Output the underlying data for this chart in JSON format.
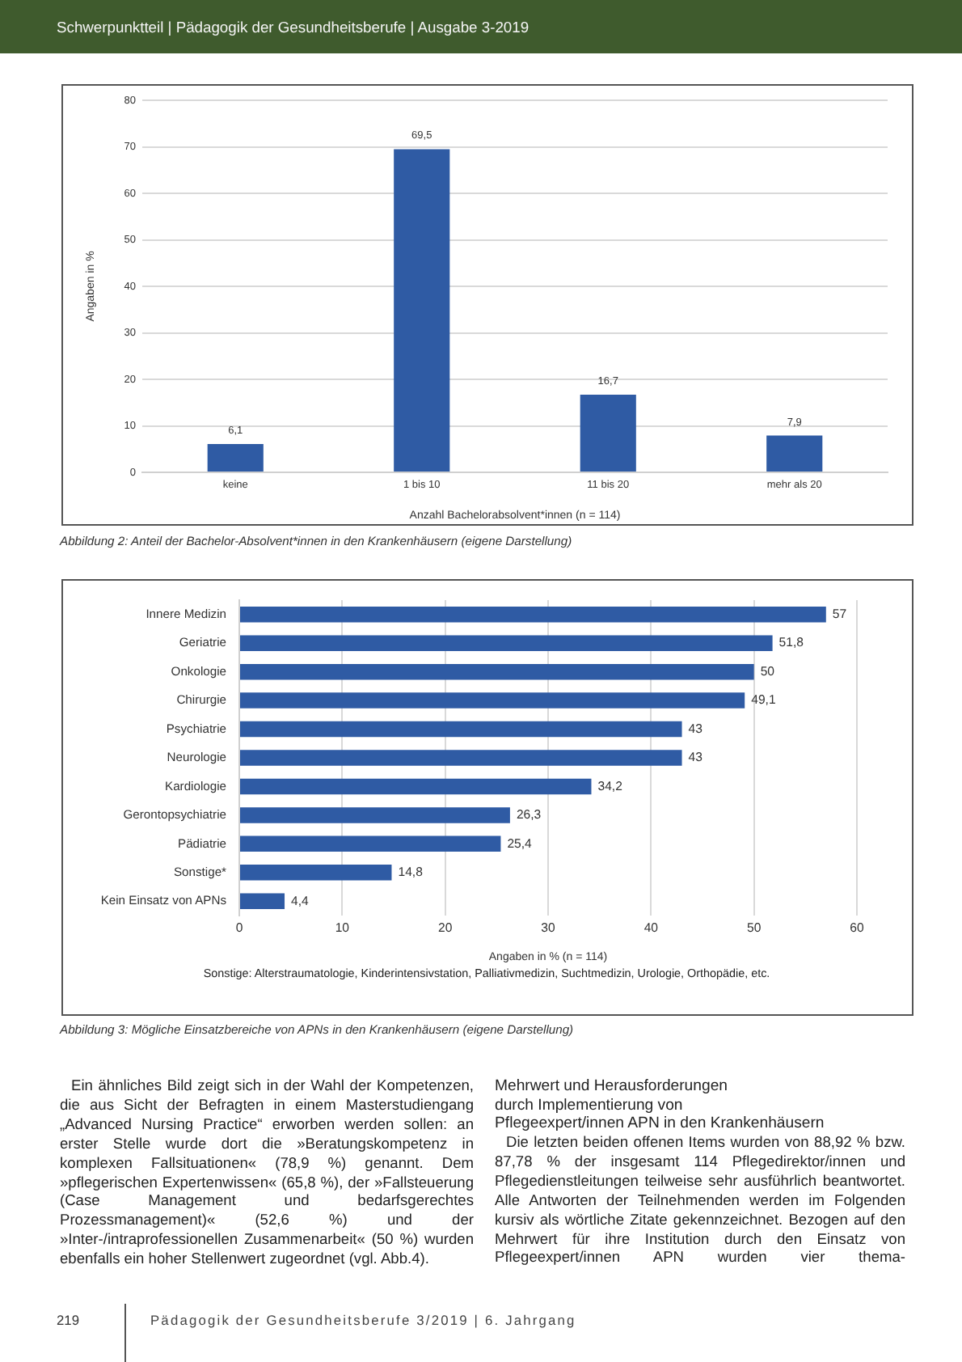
{
  "chart_data": [
    {
      "type": "other",
      "annotations": [
        "Schwerpunktteil | Pädagogik der Gesundheitsberufe | Ausgabe 3-2019"
      ]
    },
    {
      "type": "bar",
      "categories": [
        "keine",
        "1 bis 10",
        "11 bis 20",
        "mehr als 20"
      ],
      "values": [
        6.1,
        69.5,
        16.7,
        7.9
      ],
      "color": "#2f5ba4",
      "value_labels": [
        "6,1",
        "69,5",
        "16,7",
        "7,9"
      ],
      "xlabel": "Anzahl Bachelorabsolvent*innen (n = 114)",
      "ylabel": "Angaben in %",
      "ylim": [
        0,
        80
      ],
      "yticks": [
        0,
        10,
        20,
        30,
        40,
        50,
        60,
        70,
        80
      ],
      "grid": "y",
      "annotations": [
        "Abbildung 2: Anteil der Bachelor-Absolvent*innen in den Krankenhäusern (eigene Darstellung)"
      ]
    },
    {
      "type": "bar",
      "orientation": "horizontal",
      "categories": [
        "Innere Medizin",
        "Geriatrie",
        "Onkologie",
        "Chirurgie",
        "Psychiatrie",
        "Neurologie",
        "Kardiologie",
        "Gerontopsychiatrie",
        "Pädiatrie",
        "Sonstige*",
        "Kein Einsatz von APNs"
      ],
      "values": [
        57,
        51.8,
        50,
        49.1,
        43,
        43,
        34.2,
        26.3,
        25.4,
        14.8,
        4.4
      ],
      "color": "#2f5ba4",
      "value_labels": [
        "57",
        "51,8",
        "50",
        "49,1",
        "43",
        "43",
        "34,2",
        "26,3",
        "25,4",
        "14,8",
        "4,4"
      ],
      "xlabel": "Angaben in % (n = 114)",
      "xlim": [
        0,
        60
      ],
      "xticks": [
        0,
        10,
        20,
        30,
        40,
        50,
        60
      ],
      "grid": "x",
      "annotations": [
        "Sonstige: Alterstraumatologie, Kinderintensivstation, Palliativmedizin, Suchtmedizin, Urologie, Orthopädie, etc.",
        "Abbildung 3: Mögliche Einsatzbereiche von APNs in den Krankenhäusern (eigene Darstellung)"
      ]
    },
    {
      "type": "other",
      "annotations": [
        "Ein ähnliches Bild zeigt sich in der Wahl der Kompetenzen, die aus Sicht der Befragten in einem Masterstudiengang „Advanced Nursing Practice“ erworben werden sollen: an erster Stelle wurde dort die »Beratungskompetenz in komplexen Fallsituationen« (78,9 %) genannt. Dem »pflegerischen Expertenwissen« (65,8 %), der »Fallsteuerung (Case Management und bedarfsgerechtes Prozessmanagement)« (52,6 %) und der »Inter-/intraprofessionellen Zusammenarbeit« (50 %) wurden ebenfalls ein hoher Stellenwert zugeordnet (vgl. Abb.4).",
        "Mehrwert und Herausforderungen\ndurch Implementierung von\nPflegeexpert/innen APN in den Krankenhäusern",
        "Die letzten beiden offenen Items wurden von 88,92 % bzw. 87,78 % der insgesamt 114 Pflegedirektor/innen und Pflegedienstleitungen teilweise sehr ausführlich beantwortet. Alle Antworten der Teilnehmenden werden im Folgenden kursiv als wörtliche Zitate gekennzeichnet. Bezogen auf den Mehrwert für ihre Institution durch den Einsatz von Pflegeexpert/innen APN wurden vier thema-",
        "219",
        "Pädagogik der Gesundheitsberufe 3/2019 | 6. Jahrgang"
      ]
    }
  ]
}
